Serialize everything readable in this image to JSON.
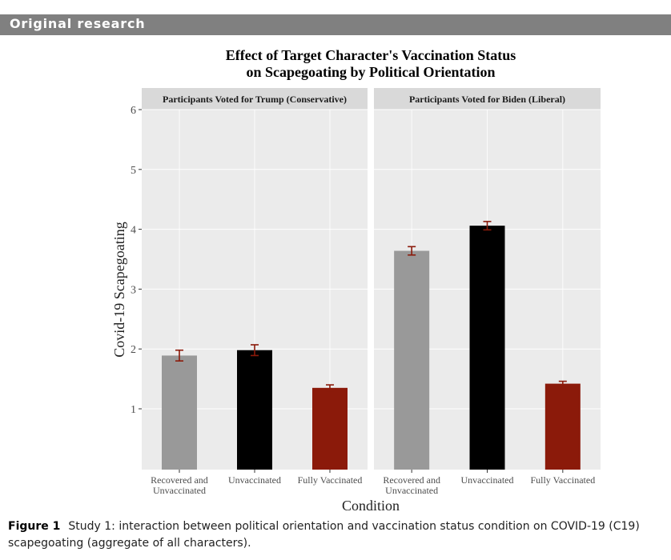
{
  "header": {
    "section": "Original research"
  },
  "caption": {
    "label": "Figure 1",
    "text": "Study 1: interaction between political orientation and vaccination status condition on COVID-19 (C19) scapegoating (aggregate of all characters)."
  },
  "chart_data": {
    "type": "bar",
    "title_lines": [
      "Effect of Target Character's Vaccination Status",
      "on Scapegoating by Political Orientation"
    ],
    "xlabel": "Condition",
    "ylabel": "Covid-19 Scapegoating",
    "ylim": [
      0,
      6
    ],
    "yticks": [
      1,
      2,
      3,
      4,
      5,
      6
    ],
    "categories": [
      "Recovered and Unvaccinated",
      "Unvaccinated",
      "Fully Vaccinated"
    ],
    "category_colors": [
      "#999999",
      "#000000",
      "#8b1a0a"
    ],
    "error_bar_color": "#8b1a0a",
    "panel_background": "#ebebeb",
    "strip_background": "#d9d9d9",
    "panels": [
      {
        "label": "Participants Voted for Trump (Conservative)",
        "values": [
          1.89,
          1.98,
          1.35
        ],
        "errors": [
          0.09,
          0.09,
          0.05
        ]
      },
      {
        "label": "Participants Voted for Biden (Liberal)",
        "values": [
          3.64,
          4.06,
          1.42
        ],
        "errors": [
          0.07,
          0.07,
          0.04
        ]
      }
    ]
  }
}
